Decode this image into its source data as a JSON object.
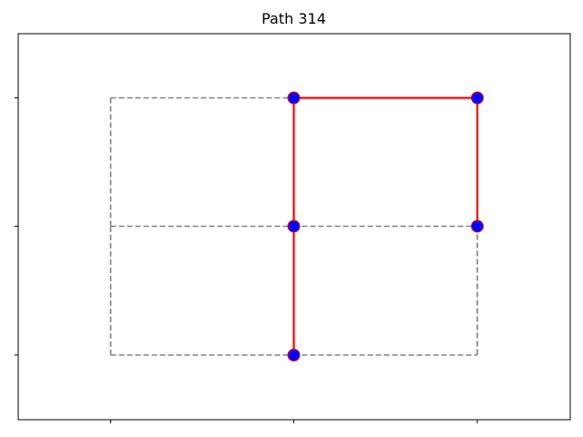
{
  "title": "Path 314",
  "colors": {
    "grid_edge": "#808080",
    "path_edge": "#ff0000",
    "node_fill": "#0000ff",
    "node_stroke": "#ff0000",
    "frame": "#000000",
    "background": "#ffffff"
  },
  "graph": {
    "columns": [
      0,
      1,
      2
    ],
    "rows": [
      0,
      1,
      2
    ],
    "grid_edges": [
      {
        "from": [
          0,
          0
        ],
        "to": [
          1,
          0
        ]
      },
      {
        "from": [
          1,
          0
        ],
        "to": [
          2,
          0
        ]
      },
      {
        "from": [
          0,
          1
        ],
        "to": [
          1,
          1
        ]
      },
      {
        "from": [
          1,
          1
        ],
        "to": [
          2,
          1
        ]
      },
      {
        "from": [
          0,
          2
        ],
        "to": [
          1,
          2
        ]
      },
      {
        "from": [
          0,
          0
        ],
        "to": [
          0,
          1
        ]
      },
      {
        "from": [
          0,
          1
        ],
        "to": [
          0,
          2
        ]
      },
      {
        "from": [
          2,
          1
        ],
        "to": [
          2,
          0
        ]
      }
    ],
    "path_edges": [
      {
        "from": [
          1,
          0
        ],
        "to": [
          1,
          1
        ]
      },
      {
        "from": [
          1,
          1
        ],
        "to": [
          1,
          2
        ]
      },
      {
        "from": [
          1,
          2
        ],
        "to": [
          2,
          2
        ]
      },
      {
        "from": [
          2,
          2
        ],
        "to": [
          2,
          1
        ]
      }
    ],
    "path_nodes": [
      [
        1,
        0
      ],
      [
        1,
        1
      ],
      [
        1,
        2
      ],
      [
        2,
        2
      ],
      [
        2,
        1
      ]
    ]
  }
}
